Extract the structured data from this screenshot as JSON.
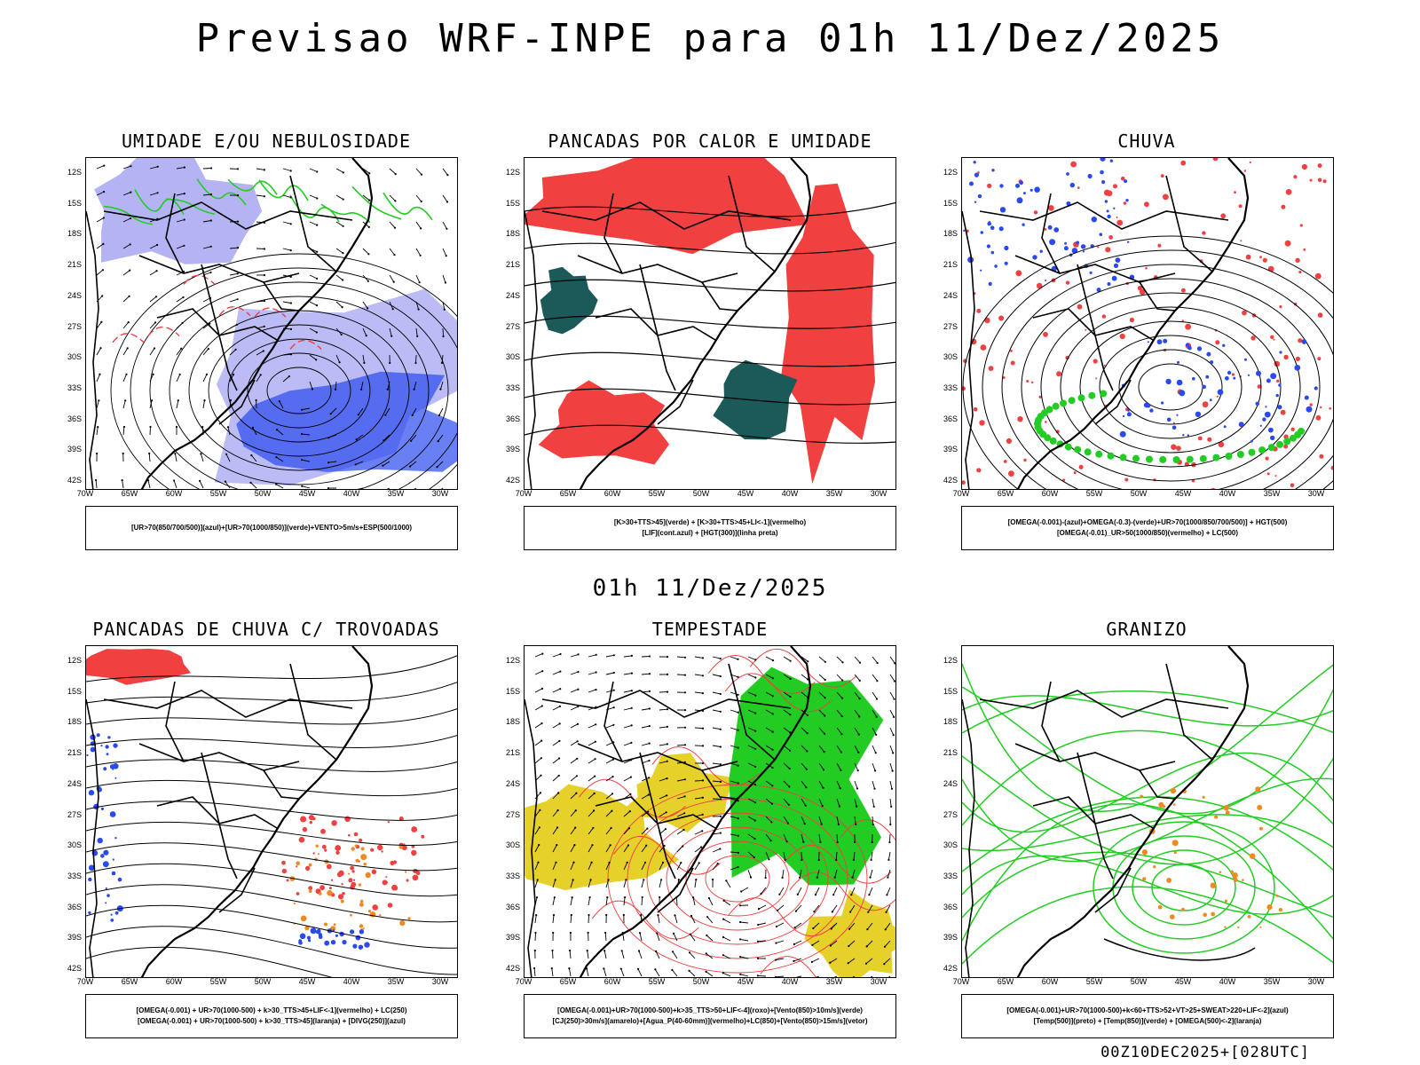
{
  "title": "Previsao WRF-INPE  para 01h 11/Dez/2025",
  "mid_time": "01h 11/Dez/2025",
  "footer": "00Z10DEC2025+[028UTC]",
  "lat_labels": [
    "12S",
    "15S",
    "18S",
    "21S",
    "24S",
    "27S",
    "30S",
    "33S",
    "36S",
    "39S",
    "42S"
  ],
  "lon_labels": [
    "70W",
    "65W",
    "60W",
    "55W",
    "50W",
    "45W",
    "40W",
    "35W",
    "30W"
  ],
  "colors": {
    "blue": "#2a4af0",
    "lightblue": "#b4b4f5",
    "green": "#22cc22",
    "red": "#f04040",
    "darkteal": "#1c5a5a",
    "orange": "#f08a20",
    "yellow": "#e6d02a"
  },
  "panels": [
    {
      "title": "UMIDADE E/OU NEBULOSIDADE",
      "legend": [
        "[UR>70(850/700/500)](azul)+[UR>70(1000/850)](verde)+VENTO>5m/s+ESP(500/1000)"
      ]
    },
    {
      "title": "PANCADAS POR CALOR E UMIDADE",
      "legend": [
        "[K>30+TTS>45](verde) + [K>30+TTS>45+LI<-1](vermelho)",
        "[LIF](cont.azul) + [HGT(300)](linha preta)"
      ]
    },
    {
      "title": "CHUVA",
      "legend": [
        "[OMEGA(-0.001)-(azul)+OMEGA(-0.3)-(verde)+UR>70(1000/850/700/500)] + HGT(500)",
        "[OMEGA(-0.01)_UR>50(1000/850)(vermelho) + LC(500)"
      ]
    },
    {
      "title": "PANCADAS DE CHUVA C/ TROVOADAS",
      "legend": [
        "[OMEGA(-0.001) + UR>70(1000-500) + k>30_TTS>45+LIF<-1](vermelho) + LC(250)",
        "[OMEGA(-0.001) + UR>70(1000-500) + k>30_TTS>45](laranja) + [DIVG(250)](azul)"
      ]
    },
    {
      "title": "TEMPESTADE",
      "legend": [
        "[OMEGA(-0.001)+UR>70(1000-500)+k>35_TTS>50+LIF<-4](roxo)+[Vento(850)>10m/s](verde)",
        "[CJ(250)>30m/s](amarelo)+[Agua_P(40-60mm)](vermelho)+LC(850)+[Vento(850)>15m/s](vetor)"
      ]
    },
    {
      "title": "GRANIZO",
      "legend": [
        "[OMEGA(-0.001)+UR>70(1000-500)+k<60+TTS>52+VT>25+SWEAT>220+LIF<-2](azul)",
        "[Temp(500)](preto) + [Temp(850)](verde) + [OMEGA(500)<-2](laranja)"
      ]
    }
  ]
}
